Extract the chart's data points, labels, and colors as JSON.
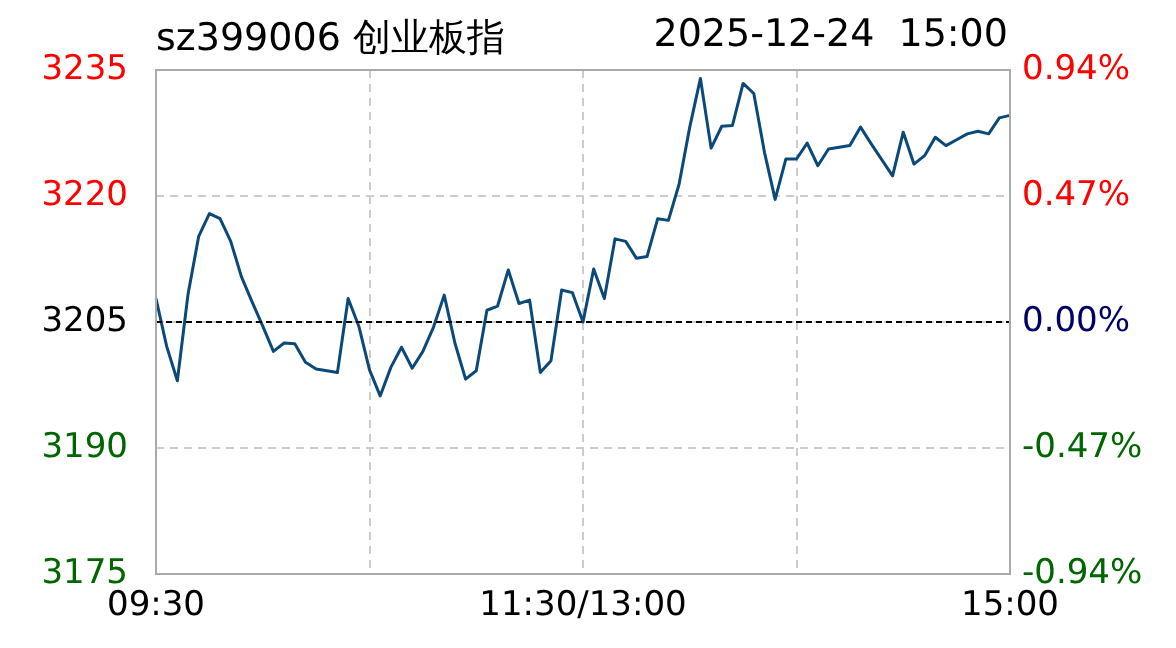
{
  "chart_data": {
    "type": "line",
    "title": "sz399006 创业板指",
    "subtitle": "2025-12-24  15:00",
    "categories": [
      "09:30",
      null,
      null,
      null,
      null,
      null,
      null,
      null,
      null,
      null,
      null,
      null,
      null,
      null,
      null,
      null,
      null,
      null,
      null,
      null,
      null,
      null,
      null,
      null,
      null,
      null,
      null,
      null,
      null,
      null,
      null,
      null,
      null,
      null,
      null,
      null,
      null,
      null,
      null,
      null,
      "11:30/13:00",
      null,
      null,
      null,
      null,
      null,
      null,
      null,
      null,
      null,
      null,
      null,
      null,
      null,
      null,
      null,
      null,
      null,
      null,
      null,
      null,
      null,
      null,
      null,
      null,
      null,
      null,
      null,
      null,
      null,
      null,
      null,
      null,
      null,
      null,
      null,
      null,
      null,
      null,
      null,
      "15:00"
    ],
    "ylim": [
      3175,
      3235
    ],
    "yticks": [
      3175,
      3190,
      3205,
      3220,
      3235
    ],
    "y2lim": [
      -0.94,
      0.94
    ],
    "y2ticks": [
      {
        "value": -0.94,
        "label": "-0.94%"
      },
      {
        "value": -0.47,
        "label": "-0.47%"
      },
      {
        "value": 0,
        "label": "0.00%"
      },
      {
        "value": 0.47,
        "label": "0.47%"
      },
      {
        "value": 0.94,
        "label": "0.94%"
      }
    ],
    "grid": true,
    "legend": false,
    "marker": "none",
    "line_style": "solid",
    "ref_lines": [
      {
        "axis": "y",
        "value": 3205,
        "label": null,
        "color": "#000000",
        "line_style": "dashed"
      }
    ],
    "series": [
      {
        "color": "#0b4a78",
        "values": [
          3207.8,
          3202.1,
          3198,
          3208.3,
          3215.2,
          3217.9,
          3217.3,
          3214.6,
          3210.4,
          3207.4,
          3204.5,
          3201.5,
          3202.5,
          3202.4,
          3200.2,
          3199.4,
          3199.2,
          3199,
          3207.8,
          3204.5,
          3199.3,
          3196.2,
          3199.6,
          3202,
          3199.5,
          3201.5,
          3204.4,
          3208.2,
          3202.5,
          3198.2,
          3199.2,
          3206.4,
          3206.9,
          3211.2,
          3207.2,
          3207.6,
          3199,
          3200.4,
          3208.8,
          3208.5,
          3205,
          3211.3,
          3207.8,
          3214.9,
          3214.6,
          3212.6,
          3212.8,
          3217.3,
          3217.1,
          3221.4,
          3228.2,
          3234,
          3225.7,
          3228.3,
          3228.4,
          3233.4,
          3232.2,
          3225.2,
          3219.6,
          3224.4,
          3224.4,
          3226.3,
          3223.6,
          3225.6,
          3225.8,
          3226,
          3228.2,
          3226.2,
          3224.3,
          3222.4,
          3227.6,
          3223.8,
          3224.8,
          3227,
          3226,
          3226.7,
          3227.4,
          3227.7,
          3227.4,
          3229.3,
          3229.6
        ]
      }
    ]
  }
}
